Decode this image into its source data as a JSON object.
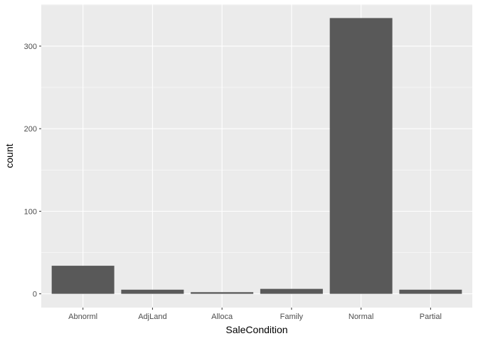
{
  "chart_data": {
    "type": "bar",
    "xlabel": "SaleCondition",
    "ylabel": "count",
    "categories": [
      "Abnorml",
      "AdjLand",
      "Alloca",
      "Family",
      "Normal",
      "Partial"
    ],
    "values": [
      34,
      5,
      2,
      6,
      334,
      5
    ],
    "ylim": [
      -16.7,
      350.7
    ],
    "yticks": [
      0,
      100,
      200,
      300
    ],
    "grid": true,
    "colors": {
      "panel": "#ebebeb",
      "grid": "#ffffff",
      "bar": "#595959"
    }
  }
}
